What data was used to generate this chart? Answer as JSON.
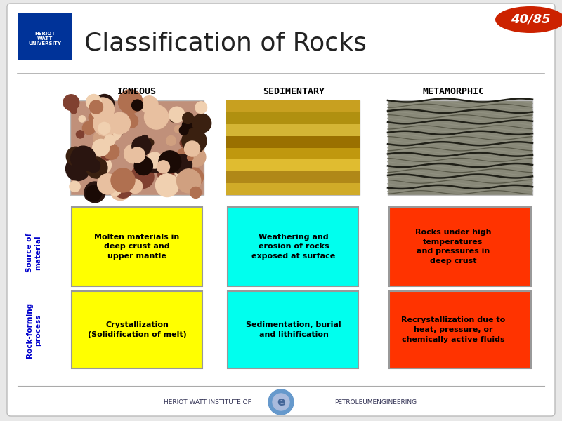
{
  "title": "Classification of Rocks",
  "slide_bg": "#e8e8e8",
  "content_bg": "#ffffff",
  "page_label": "40/85",
  "page_label_bg": "#cc2200",
  "page_label_color": "#ffffff",
  "columns": [
    "IGNEOUS",
    "SEDIMENTARY",
    "METAMORPHIC"
  ],
  "col_header_color": "#000000",
  "row_labels": [
    "Source of\nmaterial",
    "Rock-forming\nprocess"
  ],
  "row_label_color": "#0000cc",
  "cells": [
    [
      "Molten materials in\ndeep crust and\nupper mantle",
      "Weathering and\nerosion of rocks\nexposed at surface",
      "Rocks under high\ntemperatures\nand pressures in\ndeep crust"
    ],
    [
      "Crystallization\n(Solidification of melt)",
      "Sedimentation, burial\nand lithification",
      "Recrystallization due to\nheat, pressure, or\nchemically active fluids"
    ]
  ],
  "cell_colors": [
    [
      "#ffff00",
      "#00ffee",
      "#ff3300"
    ],
    [
      "#ffff00",
      "#00ffee",
      "#ff3300"
    ]
  ],
  "cell_text_colors": [
    [
      "#000000",
      "#000000",
      "#000000"
    ],
    [
      "#000000",
      "#000000",
      "#000000"
    ]
  ],
  "footer_color": "#333355"
}
